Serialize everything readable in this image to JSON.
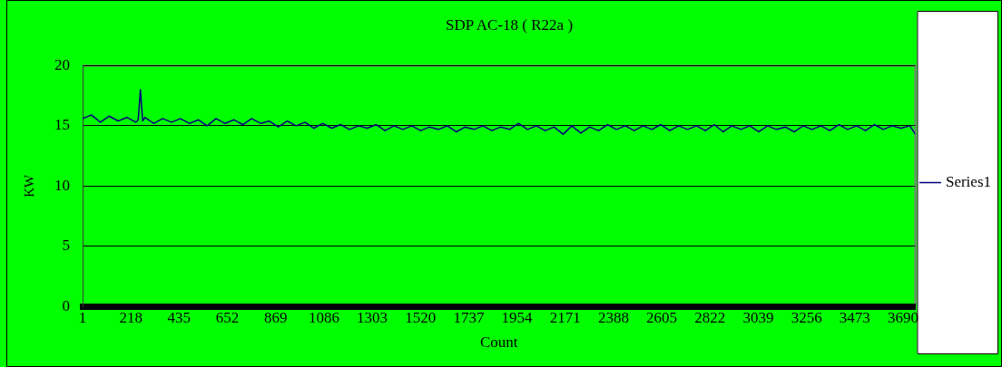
{
  "chart_data": {
    "type": "line",
    "title": "SDP AC-18 ( R22a )",
    "xlabel": "Count",
    "ylabel": "KW",
    "x": [
      1,
      41,
      81,
      121,
      161,
      201,
      241,
      251,
      261,
      271,
      281,
      321,
      361,
      401,
      441,
      481,
      521,
      561,
      601,
      641,
      681,
      721,
      761,
      801,
      841,
      881,
      921,
      961,
      1001,
      1041,
      1081,
      1121,
      1161,
      1201,
      1241,
      1281,
      1321,
      1361,
      1401,
      1441,
      1481,
      1521,
      1561,
      1601,
      1641,
      1681,
      1721,
      1761,
      1801,
      1841,
      1881,
      1921,
      1961,
      2001,
      2041,
      2081,
      2121,
      2161,
      2201,
      2241,
      2281,
      2321,
      2361,
      2401,
      2441,
      2481,
      2521,
      2561,
      2601,
      2641,
      2681,
      2721,
      2761,
      2801,
      2841,
      2881,
      2921,
      2961,
      3001,
      3041,
      3081,
      3121,
      3161,
      3201,
      3241,
      3281,
      3321,
      3361,
      3401,
      3441,
      3481,
      3521,
      3561,
      3601,
      3641,
      3681,
      3721,
      3745
    ],
    "series": [
      {
        "name": "Series1",
        "color": "#000080",
        "values": [
          15.6,
          15.9,
          15.3,
          15.8,
          15.4,
          15.7,
          15.3,
          15.5,
          18.0,
          15.4,
          15.7,
          15.2,
          15.6,
          15.3,
          15.6,
          15.2,
          15.5,
          15.0,
          15.6,
          15.2,
          15.5,
          15.1,
          15.6,
          15.2,
          15.4,
          14.9,
          15.4,
          15.0,
          15.3,
          14.8,
          15.2,
          14.8,
          15.1,
          14.7,
          15.0,
          14.8,
          15.1,
          14.6,
          15.0,
          14.7,
          15.0,
          14.6,
          14.9,
          14.7,
          15.0,
          14.5,
          14.9,
          14.7,
          15.0,
          14.6,
          14.9,
          14.7,
          15.2,
          14.7,
          15.0,
          14.6,
          14.9,
          14.3,
          15.0,
          14.4,
          14.9,
          14.6,
          15.1,
          14.7,
          15.0,
          14.6,
          15.0,
          14.7,
          15.1,
          14.6,
          15.0,
          14.7,
          15.0,
          14.6,
          15.1,
          14.5,
          15.0,
          14.7,
          15.0,
          14.5,
          15.0,
          14.7,
          14.9,
          14.5,
          15.0,
          14.7,
          15.0,
          14.6,
          15.1,
          14.7,
          15.0,
          14.6,
          15.1,
          14.7,
          15.0,
          14.8,
          15.0,
          14.3
        ]
      }
    ],
    "xlim": [
      1,
      3745
    ],
    "xticks": [
      1,
      218,
      435,
      652,
      869,
      1086,
      1303,
      1520,
      1737,
      1954,
      2171,
      2388,
      2605,
      2822,
      3039,
      3256,
      3473,
      3690
    ],
    "ylim": [
      0,
      20
    ],
    "yticks": [
      0,
      5,
      10,
      15,
      20
    ],
    "grid": "y",
    "legend": "right",
    "marker": "none"
  }
}
